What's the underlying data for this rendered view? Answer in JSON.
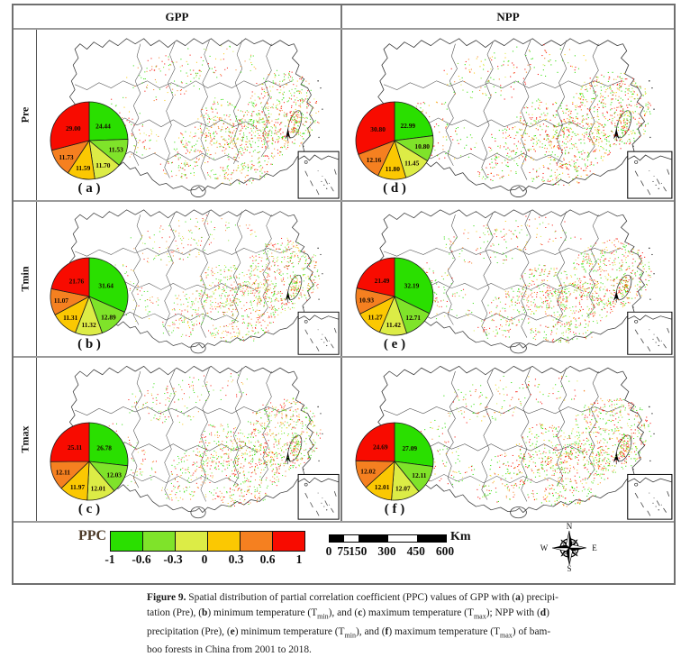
{
  "header": {
    "col1": "GPP",
    "col2": "NPP"
  },
  "rows": [
    {
      "label": "Pre"
    },
    {
      "label": "Tmin"
    },
    {
      "label": "Tmax"
    }
  ],
  "legend": {
    "title": "PPC",
    "title_color": "#4c3a28",
    "ticks": [
      "-1",
      "-0.6",
      "-0.3",
      "0",
      "0.3",
      "0.6",
      "1"
    ],
    "colors": [
      "#2ADF00",
      "#7FE32A",
      "#DCEC46",
      "#FBC802",
      "#F58020",
      "#F80B00"
    ]
  },
  "scalebar": {
    "labels": [
      "0",
      "75",
      "150",
      "300",
      "450",
      "600"
    ],
    "values": [
      0,
      75,
      150,
      300,
      450,
      600
    ],
    "unit": "Km"
  },
  "compass": {
    "labels": [
      "N",
      "E",
      "S",
      "W"
    ]
  },
  "chart_data": {
    "type": "pie",
    "note": "share of bamboo-forest pixels per PPC bin (%), slices clockwise from 12 o'clock",
    "bins": [
      "-1 to -0.6",
      "-0.6 to -0.3",
      "-0.3 to 0",
      "0 to 0.3",
      "0.3 to 0.6",
      "0.6 to 1"
    ],
    "colors": [
      "#2ADF00",
      "#7FE32A",
      "#DCEC46",
      "#FBC802",
      "#F58020",
      "#F80B00"
    ],
    "panels": [
      {
        "letter": "a",
        "label": "( a )",
        "product": "GPP",
        "variable": "Pre",
        "values": [
          24.44,
          11.53,
          11.7,
          11.59,
          11.73,
          29.0
        ]
      },
      {
        "letter": "b",
        "label": "( b )",
        "product": "GPP",
        "variable": "Tmin",
        "values": [
          31.64,
          12.89,
          11.32,
          11.31,
          11.07,
          21.76
        ]
      },
      {
        "letter": "c",
        "label": "( c )",
        "product": "GPP",
        "variable": "Tmax",
        "values": [
          26.78,
          12.03,
          12.01,
          11.97,
          12.11,
          25.11
        ]
      },
      {
        "letter": "d",
        "label": "( d )",
        "product": "NPP",
        "variable": "Pre",
        "values": [
          22.99,
          10.8,
          11.45,
          11.8,
          12.16,
          30.8
        ]
      },
      {
        "letter": "e",
        "label": "( e )",
        "product": "NPP",
        "variable": "Tmin",
        "values": [
          32.19,
          12.71,
          11.42,
          11.27,
          10.93,
          21.49
        ]
      },
      {
        "letter": "f",
        "label": "( f )",
        "product": "NPP",
        "variable": "Tmax",
        "values": [
          27.09,
          12.11,
          12.07,
          12.01,
          12.02,
          24.69
        ]
      }
    ]
  },
  "caption": {
    "lines": [
      [
        {
          "t": "Figure 9.",
          "b": 1
        },
        {
          "t": " Spatial distribution of partial correlation coefficient (PPC) values of GPP with ("
        },
        {
          "t": "a",
          "b": 1
        },
        {
          "t": ") precipi-"
        }
      ],
      [
        {
          "t": "tation (Pre), ("
        },
        {
          "t": "b",
          "b": 1
        },
        {
          "t": ") minimum temperature (T"
        },
        {
          "t": "min",
          "sub": 1
        },
        {
          "t": "), and ("
        },
        {
          "t": "c",
          "b": 1
        },
        {
          "t": ") maximum temperature (T"
        },
        {
          "t": "max",
          "sub": 1
        },
        {
          "t": "); NPP with ("
        },
        {
          "t": "d",
          "b": 1
        },
        {
          "t": ")"
        }
      ],
      [
        {
          "t": "precipitation (Pre), ("
        },
        {
          "t": "e",
          "b": 1
        },
        {
          "t": ") minimum temperature (T"
        },
        {
          "t": "min",
          "sub": 1
        },
        {
          "t": "), and ("
        },
        {
          "t": "f",
          "b": 1
        },
        {
          "t": ") maximum temperature (T"
        },
        {
          "t": "max",
          "sub": 1
        },
        {
          "t": ") of bam-"
        }
      ],
      [
        {
          "t": "boo forests in China from 2001 to 2018."
        }
      ]
    ]
  }
}
